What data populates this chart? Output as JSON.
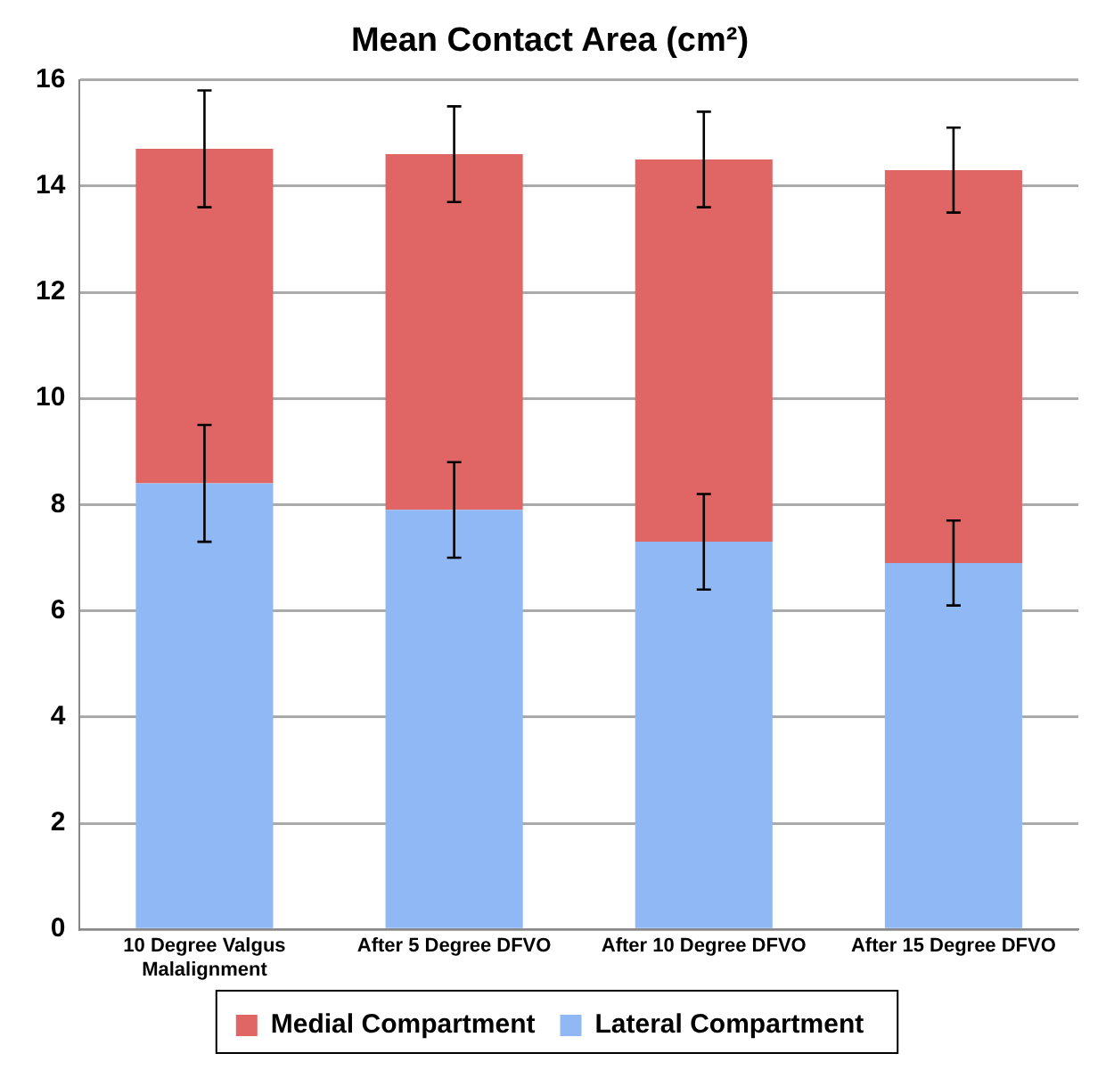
{
  "chart_data": {
    "type": "bar",
    "title": "Mean Contact Area (cm²)",
    "categories": [
      "10 Degree Valgus Malalignment",
      "After 5 Degree DFVO",
      "After 10 Degree DFVO",
      "After 15 Degree DFVO"
    ],
    "stacked": true,
    "series": [
      {
        "name": "Lateral Compartment",
        "color": "#8fb8f5",
        "values": [
          8.4,
          7.9,
          7.3,
          6.9
        ],
        "errors": [
          1.1,
          0.9,
          0.9,
          0.8
        ]
      },
      {
        "name": "Medial Compartment",
        "color": "#e06666",
        "values": [
          6.3,
          6.7,
          7.2,
          7.4
        ],
        "errors": [
          1.1,
          0.9,
          0.9,
          0.8
        ]
      }
    ],
    "ylim": [
      0,
      16
    ],
    "yticks": [
      0,
      2,
      4,
      6,
      8,
      10,
      12,
      14,
      16
    ],
    "grid": "y",
    "legend": "bottom"
  }
}
